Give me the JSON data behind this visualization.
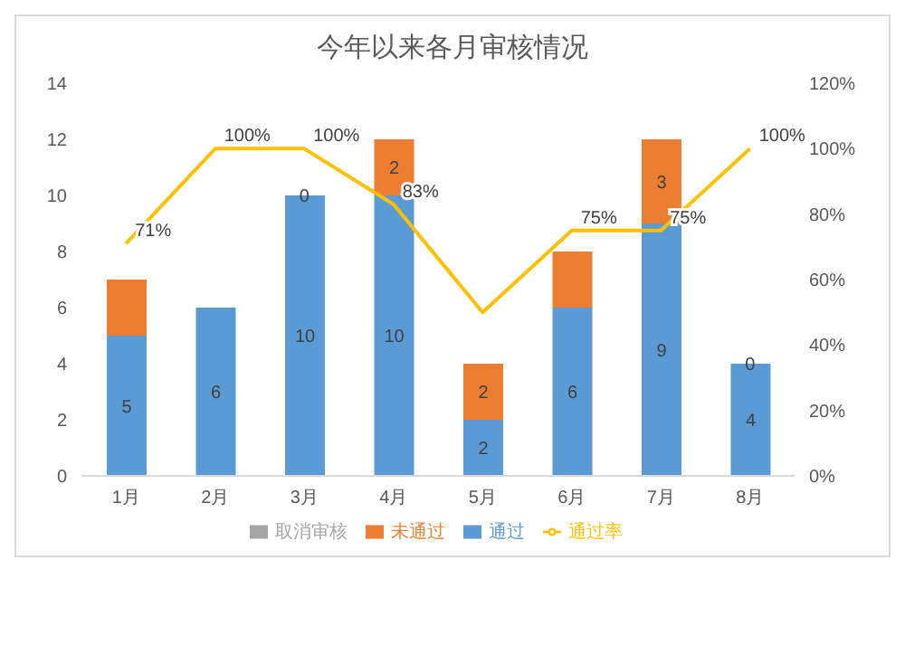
{
  "chart_data": {
    "type": "bar",
    "title": "今年以来各月审核情况",
    "stacked": true,
    "categories": [
      "1月",
      "2月",
      "3月",
      "4月",
      "5月",
      "6月",
      "7月",
      "8月"
    ],
    "series": [
      {
        "name": "通过",
        "color": "#5b9bd5",
        "values": [
          5,
          6,
          10,
          10,
          2,
          6,
          9,
          4
        ]
      },
      {
        "name": "未通过",
        "color": "#ed7d31",
        "values": [
          2,
          0,
          0,
          2,
          2,
          2,
          3,
          0
        ],
        "value_labels": [
          null,
          null,
          "0",
          "2",
          "2",
          null,
          "3",
          "0"
        ]
      },
      {
        "name": "取消审核",
        "color": "#a5a5a5",
        "values": [
          null,
          null,
          null,
          null,
          null,
          null,
          null,
          null
        ]
      },
      {
        "name": "通过率",
        "type": "line",
        "axis": "y2",
        "color": "#ffc000",
        "marker": "none",
        "values": [
          71,
          100,
          100,
          83,
          50,
          75,
          75,
          100
        ],
        "value_labels": [
          "71%",
          "100%",
          "100%",
          "83%",
          null,
          "75%",
          "75%",
          "100%"
        ]
      }
    ],
    "ylim": [
      0,
      14
    ],
    "yticks": [
      0,
      2,
      4,
      6,
      8,
      10,
      12,
      14
    ],
    "y2lim": [
      0,
      120
    ],
    "y2ticks": [
      {
        "value": 0,
        "label": "0%"
      },
      {
        "value": 20,
        "label": "20%"
      },
      {
        "value": 40,
        "label": "40%"
      },
      {
        "value": 60,
        "label": "60%"
      },
      {
        "value": 80,
        "label": "80%"
      },
      {
        "value": 100,
        "label": "100%"
      },
      {
        "value": 120,
        "label": "120%"
      }
    ],
    "data_labels": true,
    "grid": false,
    "legend": "bottom"
  }
}
